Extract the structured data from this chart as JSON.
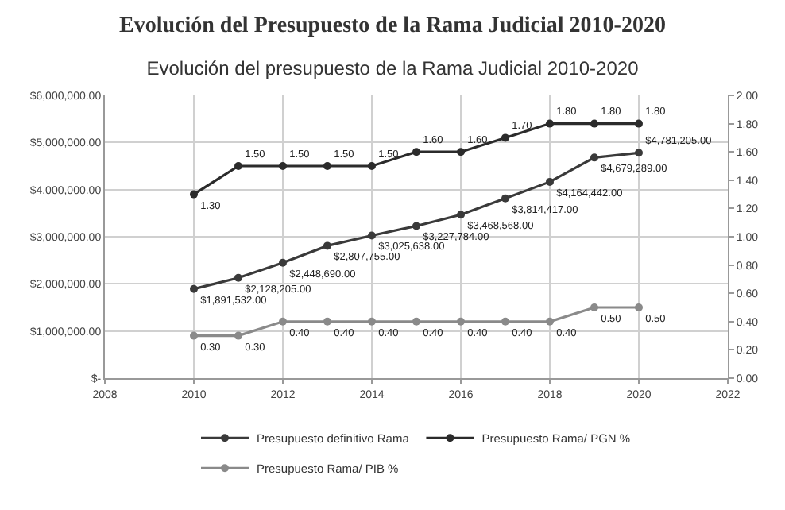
{
  "chart_data": {
    "type": "line",
    "title": "Evolución del Presupuesto de la Rama Judicial 2010-2020",
    "subtitle": "Evolución del presupuesto de la Rama Judicial 2010-2020",
    "x": [
      2010,
      2011,
      2012,
      2013,
      2014,
      2015,
      2016,
      2017,
      2018,
      2019,
      2020
    ],
    "series": [
      {
        "name": "Presupuesto definitivo Rama",
        "color": "#3a3a3a",
        "values": [
          1891532,
          2128205,
          2448690,
          2807755,
          3025638,
          3227784,
          3468568,
          3814417,
          4164442,
          4679289,
          4781205
        ],
        "value_labels": [
          "$1,891,532.00",
          "$2,128,205.00",
          "$2,448,690.00",
          "$2,807,755.00",
          "$3,025,638.00",
          "$3,227,784.00",
          "$3,468,568.00",
          "$3,814,417.00",
          "$4,164,442.00",
          "$4,679,289.00",
          "$4,781,205.00"
        ]
      },
      {
        "name": "Presupuesto Rama/ PGN %",
        "color": "#2b2b2b",
        "axis": "y2",
        "values": [
          1.3,
          1.5,
          1.5,
          1.5,
          1.5,
          1.6,
          1.6,
          1.7,
          1.8,
          1.8,
          1.8
        ],
        "value_labels": [
          "1.30",
          "1.50",
          "1.50",
          "1.50",
          "1.50",
          "1.60",
          "1.60",
          "1.70",
          "1.80",
          "1.80",
          "1.80"
        ]
      },
      {
        "name": "Presupuesto Rama/ PIB %",
        "color": "#8a8a8a",
        "axis": "y2",
        "values": [
          0.3,
          0.3,
          0.4,
          0.4,
          0.4,
          0.4,
          0.4,
          0.4,
          0.4,
          0.5,
          0.5
        ],
        "value_labels": [
          "0.30",
          "0.30",
          "0.40",
          "0.40",
          "0.40",
          "0.40",
          "0.40",
          "0.40",
          "0.40",
          "0.50",
          "0.50"
        ]
      }
    ],
    "xlim": [
      2008,
      2022
    ],
    "xticks": [
      2008,
      2010,
      2012,
      2014,
      2016,
      2018,
      2020,
      2022
    ],
    "ylim": [
      0,
      6000000
    ],
    "yticks": [
      {
        "value": 0,
        "label": "$-"
      },
      {
        "value": 1000000,
        "label": "$1,000,000.00"
      },
      {
        "value": 2000000,
        "label": "$2,000,000.00"
      },
      {
        "value": 3000000,
        "label": "$3,000,000.00"
      },
      {
        "value": 4000000,
        "label": "$4,000,000.00"
      },
      {
        "value": 5000000,
        "label": "$5,000,000.00"
      },
      {
        "value": 6000000,
        "label": "$6,000,000.00"
      }
    ],
    "y2lim": [
      0,
      2
    ],
    "y2ticks": [
      {
        "value": 0,
        "label": "0.00"
      },
      {
        "value": 0.2,
        "label": "0.20"
      },
      {
        "value": 0.4,
        "label": "0.40"
      },
      {
        "value": 0.6,
        "label": "0.60"
      },
      {
        "value": 0.8,
        "label": "0.80"
      },
      {
        "value": 1,
        "label": "1.00"
      },
      {
        "value": 1.2,
        "label": "1.20"
      },
      {
        "value": 1.4,
        "label": "1.40"
      },
      {
        "value": 1.6,
        "label": "1.60"
      },
      {
        "value": 1.8,
        "label": "1.80"
      },
      {
        "value": 2,
        "label": "2.00"
      }
    ],
    "grid": true,
    "legend": "bottom",
    "marker": "circle",
    "line_style": "solid"
  }
}
